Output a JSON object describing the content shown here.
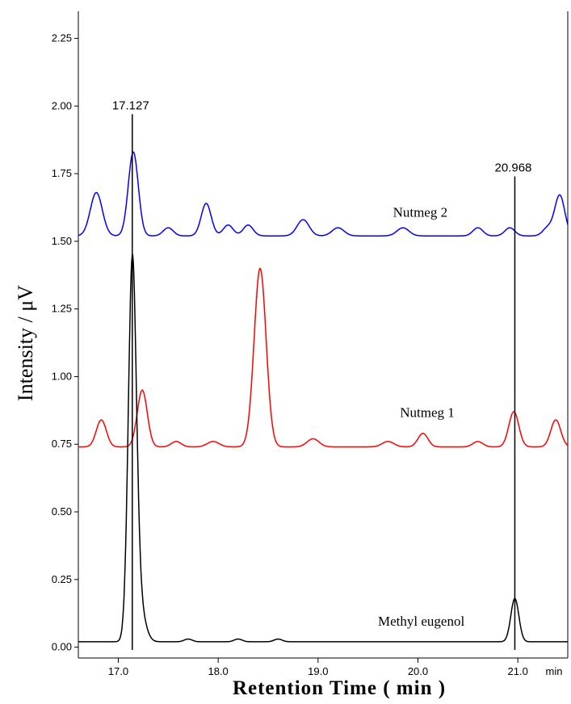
{
  "chart_data": {
    "type": "line",
    "title": "",
    "xlabel": "Retention Time ( min )",
    "ylabel": "Intensity / μV",
    "x_unit_label": "min",
    "xlim": [
      16.6,
      21.5
    ],
    "ylim": [
      -0.04,
      2.35
    ],
    "x_ticks": [
      "17.0",
      "18.0",
      "19.0",
      "20.0",
      "21.0"
    ],
    "y_ticks": [
      "0.00",
      "0.25",
      "0.50",
      "0.75",
      "1.00",
      "1.25",
      "1.50",
      "1.75",
      "2.00",
      "2.25"
    ],
    "grid": false,
    "annotations": [
      {
        "label": "17.127",
        "x": 17.14,
        "y_top": 1.97
      },
      {
        "label": "20.968",
        "x": 20.97,
        "y_top": 1.74
      }
    ],
    "series": [
      {
        "name": "Nutmeg 2",
        "color": "#0000ff",
        "label_at": [
          19.75,
          1.59
        ],
        "baseline": 1.52,
        "peaks": [
          [
            16.78,
            0.16,
            0.06
          ],
          [
            17.15,
            0.31,
            0.05
          ],
          [
            17.5,
            0.03,
            0.05
          ],
          [
            17.88,
            0.12,
            0.05
          ],
          [
            18.1,
            0.04,
            0.05
          ],
          [
            18.3,
            0.04,
            0.05
          ],
          [
            18.85,
            0.06,
            0.06
          ],
          [
            19.2,
            0.03,
            0.06
          ],
          [
            19.85,
            0.03,
            0.06
          ],
          [
            20.6,
            0.03,
            0.05
          ],
          [
            20.92,
            0.03,
            0.05
          ],
          [
            21.3,
            0.03,
            0.05
          ],
          [
            21.42,
            0.15,
            0.05
          ]
        ]
      },
      {
        "name": "Nutmeg 1",
        "color": "#ff0000",
        "label_at": [
          19.82,
          0.85
        ],
        "baseline": 0.74,
        "peaks": [
          [
            16.83,
            0.1,
            0.05
          ],
          [
            17.24,
            0.21,
            0.05
          ],
          [
            17.58,
            0.02,
            0.05
          ],
          [
            17.95,
            0.02,
            0.06
          ],
          [
            18.42,
            0.66,
            0.06
          ],
          [
            18.95,
            0.03,
            0.06
          ],
          [
            19.7,
            0.02,
            0.06
          ],
          [
            20.05,
            0.05,
            0.05
          ],
          [
            20.6,
            0.02,
            0.05
          ],
          [
            20.96,
            0.13,
            0.05
          ],
          [
            21.38,
            0.1,
            0.05
          ]
        ]
      },
      {
        "name": "Methyl eugenol",
        "color": "#000000",
        "label_at": [
          19.6,
          0.08
        ],
        "baseline": 0.02,
        "peaks": [
          [
            17.14,
            1.34,
            0.04
          ],
          [
            17.2,
            0.15,
            0.06
          ],
          [
            17.7,
            0.01,
            0.04
          ],
          [
            18.2,
            0.01,
            0.04
          ],
          [
            18.6,
            0.01,
            0.04
          ],
          [
            20.97,
            0.16,
            0.04
          ]
        ]
      }
    ]
  }
}
